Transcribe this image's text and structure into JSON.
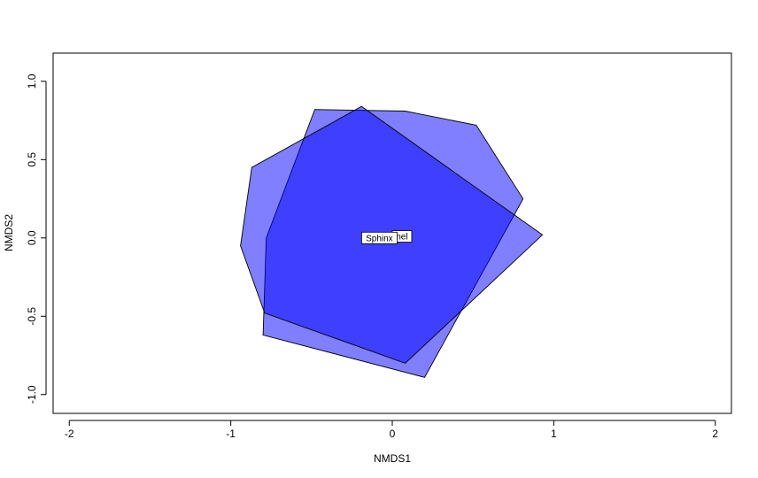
{
  "chart_data": {
    "type": "scatter",
    "title": "",
    "xlabel": "NMDS1",
    "ylabel": "NMDS2",
    "xlim": [
      -2.1,
      2.1
    ],
    "ylim": [
      -1.12,
      1.18
    ],
    "x_ticks": [
      -2,
      -1,
      0,
      1,
      2
    ],
    "y_ticks": [
      -1.0,
      -0.5,
      0.0,
      0.5,
      1.0
    ],
    "x_tick_labels": [
      "-2",
      "-1",
      "0",
      "1",
      "2"
    ],
    "y_tick_labels": [
      "-1.0",
      "-0.5",
      "0.0",
      "0.5",
      "1.0"
    ],
    "grid": false,
    "legend": "none",
    "hulls": [
      {
        "label": "Dynamixel",
        "visible_label": "nel",
        "fill": "#0000FF80",
        "centroid": [
          0.06,
          0.01
        ],
        "vertices": [
          [
            -0.48,
            0.82
          ],
          [
            0.08,
            0.81
          ],
          [
            0.52,
            0.72
          ],
          [
            0.81,
            0.25
          ],
          [
            0.2,
            -0.89
          ],
          [
            -0.8,
            -0.62
          ],
          [
            -0.78,
            0.0
          ]
        ]
      },
      {
        "label": "Sphinx",
        "visible_label": "Sphinx",
        "fill": "#0000FF80",
        "centroid": [
          -0.08,
          0.0
        ],
        "vertices": [
          [
            -0.19,
            0.84
          ],
          [
            0.93,
            0.02
          ],
          [
            0.08,
            -0.8
          ],
          [
            -0.79,
            -0.48
          ],
          [
            -0.94,
            -0.05
          ],
          [
            -0.87,
            0.45
          ]
        ]
      }
    ]
  }
}
